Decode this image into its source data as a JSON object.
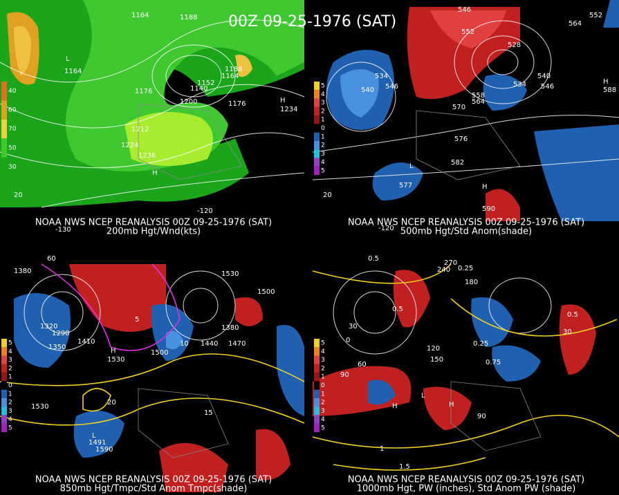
{
  "title": "00Z 09-25-1976 (SAT)",
  "panels": [
    {
      "source": "NOAA NWS NCEP REANALYSIS 00Z 09-25-1976 (SAT)",
      "subtitle": "200mb Hgt/Wnd(kts)",
      "legend": [
        "40",
        "60",
        "70",
        "50",
        "30"
      ],
      "labels": [
        "1164",
        "1188",
        "1176",
        "L",
        "1164",
        "1140",
        "1152",
        "1164",
        "1188",
        "1176",
        "1200",
        "1212",
        "1224",
        "1236",
        "H",
        "1234",
        "H",
        "-120",
        "-130",
        "20"
      ]
    },
    {
      "source": "NOAA NWS NCEP REANALYSIS 00Z 09-25-1976 (SAT)",
      "subtitle": "500mb Hgt/Std Anom(shade)",
      "legend": [
        "5",
        "4",
        "3",
        "2",
        "1",
        "0",
        "1",
        "2",
        "3",
        "4",
        "5"
      ],
      "labels": [
        "546",
        "552",
        "564",
        "552",
        "534",
        "540",
        "546",
        "528",
        "540",
        "546",
        "534",
        "558",
        "564",
        "570",
        "576",
        "582",
        "L",
        "577",
        "H",
        "590",
        "H",
        "588",
        "-120",
        "20"
      ]
    },
    {
      "source": "NOAA NWS NCEP REANALYSIS 00Z 09-25-1976 (SAT)",
      "subtitle": "850mb Hgt/Tmpc/Std Anom Tmpc(shade)",
      "legend": [
        "5",
        "4",
        "3",
        "2",
        "1",
        "0",
        "1",
        "2",
        "3",
        "4",
        "5"
      ],
      "labels": [
        "1380",
        "1320",
        "1290",
        "1350",
        "1410",
        "H",
        "1530",
        "1500",
        "1380",
        "1440",
        "1470",
        "1500",
        "1530",
        "1530",
        "L",
        "1491",
        "1590",
        "5",
        "10",
        "15",
        "20",
        "60"
      ]
    },
    {
      "source": "NOAA NWS NCEP REANALYSIS 00Z 09-25-1976 (SAT)",
      "subtitle": "1000mb Hgt, PW (inches), Std Anom PW (shade)",
      "legend": [
        "5",
        "4",
        "3",
        "2",
        "1",
        "0",
        "1",
        "2",
        "3",
        "4",
        "5"
      ],
      "labels": [
        "0.5",
        "270",
        "240",
        "180",
        "0.25",
        "0.5",
        "0",
        "30",
        "60",
        "90",
        "120",
        "150",
        "0.25",
        "0.5",
        "1",
        "1.5",
        "0.75",
        "H",
        "H",
        "L",
        "30",
        "90"
      ]
    }
  ]
}
